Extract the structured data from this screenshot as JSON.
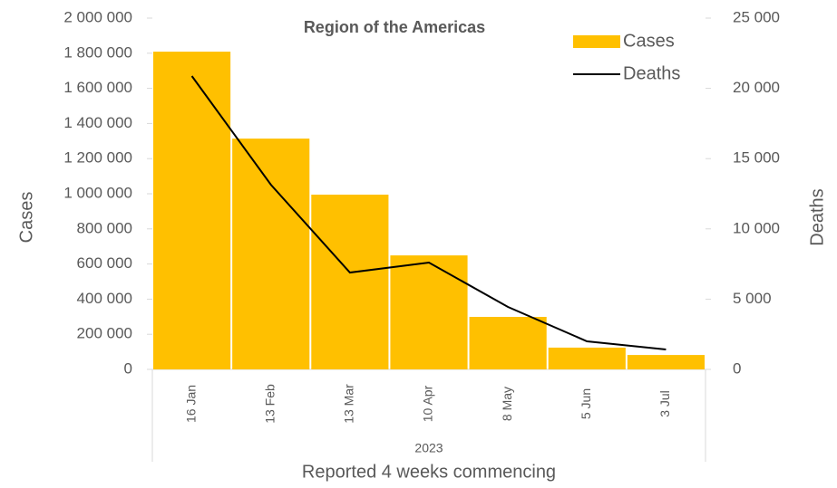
{
  "chart_data": {
    "type": "bar_line",
    "title": "Region of the Americas",
    "x_group_label": "2023",
    "xlabel": "Reported 4 weeks commencing",
    "ylabel": "Cases",
    "y2label": "Deaths",
    "categories": [
      "16 Jan",
      "13 Feb",
      "13 Mar",
      "10 Apr",
      "8 May",
      "5 Jun",
      "3 Jul"
    ],
    "series": [
      {
        "name": "Cases",
        "type": "bar",
        "color": "#ffc000",
        "values": [
          1809000,
          1314000,
          995000,
          649000,
          299000,
          124000,
          82000
        ]
      },
      {
        "name": "Deaths",
        "type": "line",
        "color": "#000000",
        "axis": "y2",
        "values": [
          20876,
          13144,
          6894,
          7603,
          4446,
          1997,
          1418
        ]
      }
    ],
    "ylim": [
      0,
      2000000
    ],
    "yticks": [
      0,
      {
        "value": 200000,
        "label": "200 000"
      },
      {
        "value": 400000,
        "label": "400 000"
      },
      {
        "value": 600000,
        "label": "600 000"
      },
      {
        "value": 800000,
        "label": "800 000"
      },
      {
        "value": 1000000,
        "label": "1 000 000"
      },
      {
        "value": 1200000,
        "label": "1 200 000"
      },
      {
        "value": 1400000,
        "label": "1 400 000"
      },
      {
        "value": 1600000,
        "label": "1 600 000"
      },
      {
        "value": 1800000,
        "label": "1 800 000"
      },
      {
        "value": 2000000,
        "label": "2 000 000"
      }
    ],
    "y2lim": [
      0,
      25000
    ],
    "y2ticks": [
      0,
      {
        "value": 5000,
        "label": "5 000"
      },
      {
        "value": 10000,
        "label": "10 000"
      },
      {
        "value": 15000,
        "label": "15 000"
      },
      {
        "value": 20000,
        "label": "20 000"
      },
      {
        "value": 25000,
        "label": "25 000"
      }
    ],
    "legend": "top-right"
  }
}
